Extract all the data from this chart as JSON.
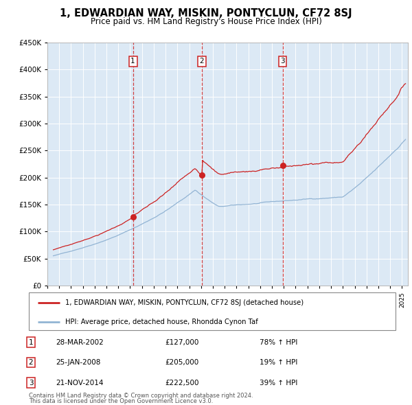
{
  "title": "1, EDWARDIAN WAY, MISKIN, PONTYCLUN, CF72 8SJ",
  "subtitle": "Price paid vs. HM Land Registry's House Price Index (HPI)",
  "background_color": "#ffffff",
  "plot_bg_color": "#dce9f5",
  "hpi_line_color": "#92b4d4",
  "price_line_color": "#cc2222",
  "sale_dates_num": [
    2002.24,
    2008.07,
    2014.9
  ],
  "sale_prices": [
    127000,
    205000,
    222500
  ],
  "sale_labels": [
    "1",
    "2",
    "3"
  ],
  "sale_dates_str": [
    "28-MAR-2002",
    "25-JAN-2008",
    "21-NOV-2014"
  ],
  "sale_prices_str": [
    "£127,000",
    "£205,000",
    "£222,500"
  ],
  "sale_changes": [
    "78% ↑ HPI",
    "19% ↑ HPI",
    "39% ↑ HPI"
  ],
  "legend_line1": "1, EDWARDIAN WAY, MISKIN, PONTYCLUN, CF72 8SJ (detached house)",
  "legend_line2": "HPI: Average price, detached house, Rhondda Cynon Taf",
  "footer_line1": "Contains HM Land Registry data © Crown copyright and database right 2024.",
  "footer_line2": "This data is licensed under the Open Government Licence v3.0.",
  "ylim": [
    0,
    450000
  ],
  "xlim_start": 1995.3,
  "xlim_end": 2025.5,
  "yticks": [
    0,
    50000,
    100000,
    150000,
    200000,
    250000,
    300000,
    350000,
    400000,
    450000
  ]
}
